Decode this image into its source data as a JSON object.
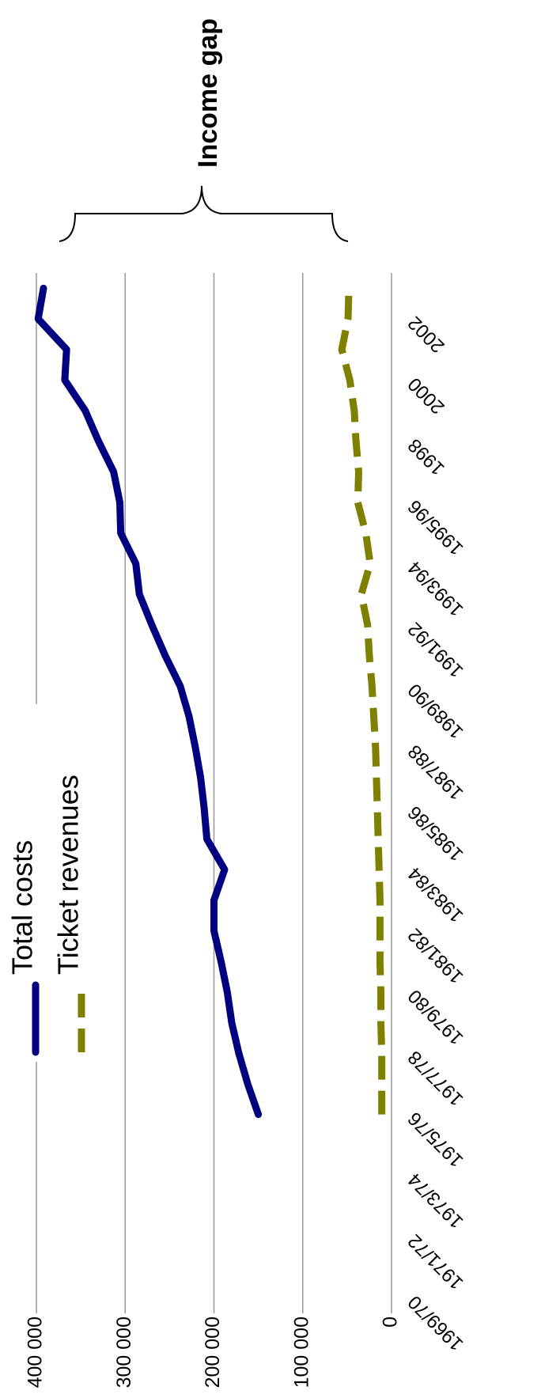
{
  "chart_data": {
    "type": "line",
    "annotation": "Income gap",
    "categories": [
      "1969/70",
      null,
      "1971/72",
      null,
      "1973/74",
      null,
      "1975/76",
      null,
      "1977/78",
      null,
      "1979/80",
      null,
      "1981/82",
      null,
      "1983/84",
      null,
      "1985/86",
      null,
      "1987/88",
      null,
      "1989/90",
      null,
      "1991/92",
      null,
      "1993/94",
      null,
      "1995/96",
      null,
      "1998",
      null,
      "2000",
      null,
      "2002",
      null
    ],
    "series": [
      {
        "name": "Total costs",
        "color": "#000080",
        "dash": false,
        "values": [
          null,
          null,
          null,
          null,
          null,
          null,
          150000,
          162000,
          172000,
          180000,
          185000,
          192000,
          200000,
          200000,
          188000,
          208000,
          211000,
          215000,
          221000,
          228000,
          238000,
          255000,
          270000,
          284000,
          288000,
          305000,
          306000,
          313000,
          330000,
          345000,
          368000,
          366000,
          398000,
          392000
        ]
      },
      {
        "name": "Ticket revenues",
        "color": "#808000",
        "dash": true,
        "values": [
          null,
          null,
          null,
          null,
          null,
          null,
          11000,
          11000,
          11000,
          12000,
          12000,
          13000,
          13000,
          13000,
          14000,
          15000,
          16000,
          17000,
          18000,
          20000,
          22000,
          25000,
          27000,
          34000,
          24000,
          29000,
          38000,
          37000,
          40000,
          42000,
          47000,
          56000,
          49000,
          48000
        ]
      }
    ],
    "ylim": [
      0,
      400000
    ],
    "yticks": [
      0,
      {
        "value": 100000,
        "label": "100 000"
      },
      {
        "value": 200000,
        "label": "200 000"
      },
      {
        "value": 300000,
        "label": "300 000"
      },
      {
        "value": 400000,
        "label": "400 000"
      }
    ],
    "grid": true
  }
}
